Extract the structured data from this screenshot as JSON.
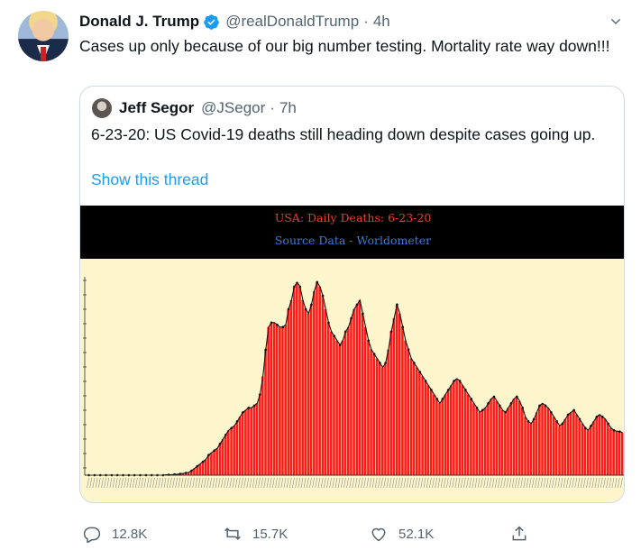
{
  "tweet": {
    "author_name": "Donald J. Trump",
    "handle": "@realDonaldTrump",
    "separator": "·",
    "time": "4h",
    "text": "Cases up only because of our big number testing. Mortality rate way down!!!"
  },
  "quoted": {
    "author_name": "Jeff Segor",
    "handle": "@JSegor",
    "separator": "·",
    "time": "7h",
    "text": "6-23-20: US Covid-19 deaths still heading down despite cases going up.",
    "thread_link": "Show this thread"
  },
  "chart_data": {
    "type": "bar",
    "title": "USA: Daily Deaths: 6-23-20",
    "subtitle": "Source Data - Worldometer",
    "colors": {
      "bars": "#ff1a1a",
      "background": "#fdf6cd",
      "header": "#000000",
      "title": "#e8412c",
      "subtitle": "#3b7bdf"
    },
    "values": [
      0,
      0,
      0,
      0,
      0,
      0,
      0,
      0,
      0,
      0,
      0,
      0,
      0,
      0,
      0,
      0,
      0,
      0,
      0,
      0,
      0,
      0,
      0,
      0,
      0,
      0,
      0,
      1,
      1,
      1,
      2,
      2,
      3,
      4,
      5,
      6,
      10,
      15,
      20,
      25,
      30,
      35,
      45,
      50,
      55,
      60,
      70,
      80,
      90,
      100,
      105,
      110,
      120,
      130,
      140,
      145,
      150,
      150,
      155,
      160,
      180,
      220,
      280,
      330,
      340,
      340,
      335,
      330,
      330,
      335,
      370,
      390,
      420,
      430,
      420,
      390,
      370,
      360,
      380,
      410,
      430,
      420,
      400,
      370,
      340,
      320,
      310,
      300,
      290,
      300,
      320,
      330,
      350,
      370,
      380,
      390,
      360,
      330,
      300,
      280,
      270,
      260,
      250,
      240,
      250,
      280,
      320,
      350,
      380,
      360,
      330,
      300,
      280,
      260,
      250,
      240,
      230,
      220,
      210,
      200,
      190,
      180,
      170,
      160,
      170,
      180,
      190,
      200,
      210,
      215,
      210,
      200,
      190,
      180,
      170,
      160,
      150,
      140,
      145,
      150,
      160,
      170,
      175,
      165,
      155,
      145,
      140,
      150,
      160,
      170,
      175,
      165,
      150,
      130,
      120,
      115,
      125,
      140,
      155,
      160,
      155,
      150,
      140,
      130,
      120,
      110,
      115,
      125,
      135,
      140,
      145,
      135,
      125,
      115,
      105,
      100,
      110,
      120,
      130,
      135,
      130,
      125,
      115,
      105,
      100,
      98,
      97,
      95
    ],
    "ylim": [
      0,
      450
    ],
    "grid": false
  },
  "actions": {
    "replies": "12.8K",
    "retweets": "15.7K",
    "likes": "52.1K"
  }
}
